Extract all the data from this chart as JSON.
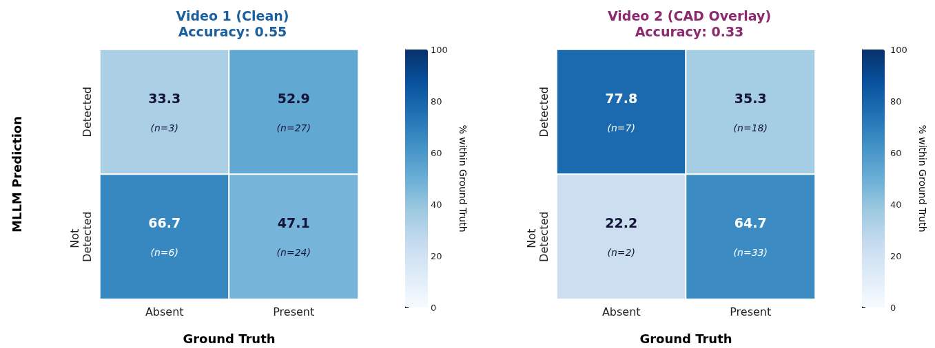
{
  "chart_data": [
    {
      "type": "heatmap",
      "title": "Video 1 (Clean)",
      "subtitle": "Accuracy: 0.55",
      "xlabel": "Ground Truth",
      "ylabel": "MLLM Prediction",
      "clabel": "% within Ground Truth",
      "categories": [
        "Absent",
        "Present"
      ],
      "y_categories": [
        "Detected",
        "Not Detected"
      ],
      "cells": [
        [
          33.3,
          52.9
        ],
        [
          66.7,
          47.1
        ]
      ],
      "cell_labels": [
        [
          "33.3\n(n=3)",
          "52.9\n(n=27)"
        ],
        [
          "66.7\n(n=6)",
          "47.1\n(n=24)"
        ]
      ],
      "clim": [
        0,
        100
      ],
      "cticks": [
        0,
        20,
        40,
        60,
        80,
        100
      ]
    },
    {
      "type": "heatmap",
      "title": "Video 2 (CAD Overlay)",
      "subtitle": "Accuracy: 0.33",
      "xlabel": "Ground Truth",
      "clabel": "% within Ground Truth",
      "categories": [
        "Absent",
        "Present"
      ],
      "y_categories": [
        "Detected",
        "Not Detected"
      ],
      "cells": [
        [
          77.8,
          35.3
        ],
        [
          22.2,
          64.7
        ]
      ],
      "cell_labels": [
        [
          "77.8\n(n=7)",
          "35.3\n(n=18)"
        ],
        [
          "22.2\n(n=2)",
          "64.7\n(n=33)"
        ]
      ],
      "clim": [
        0,
        100
      ],
      "cticks": [
        0,
        20,
        40,
        60,
        80,
        100
      ]
    }
  ]
}
